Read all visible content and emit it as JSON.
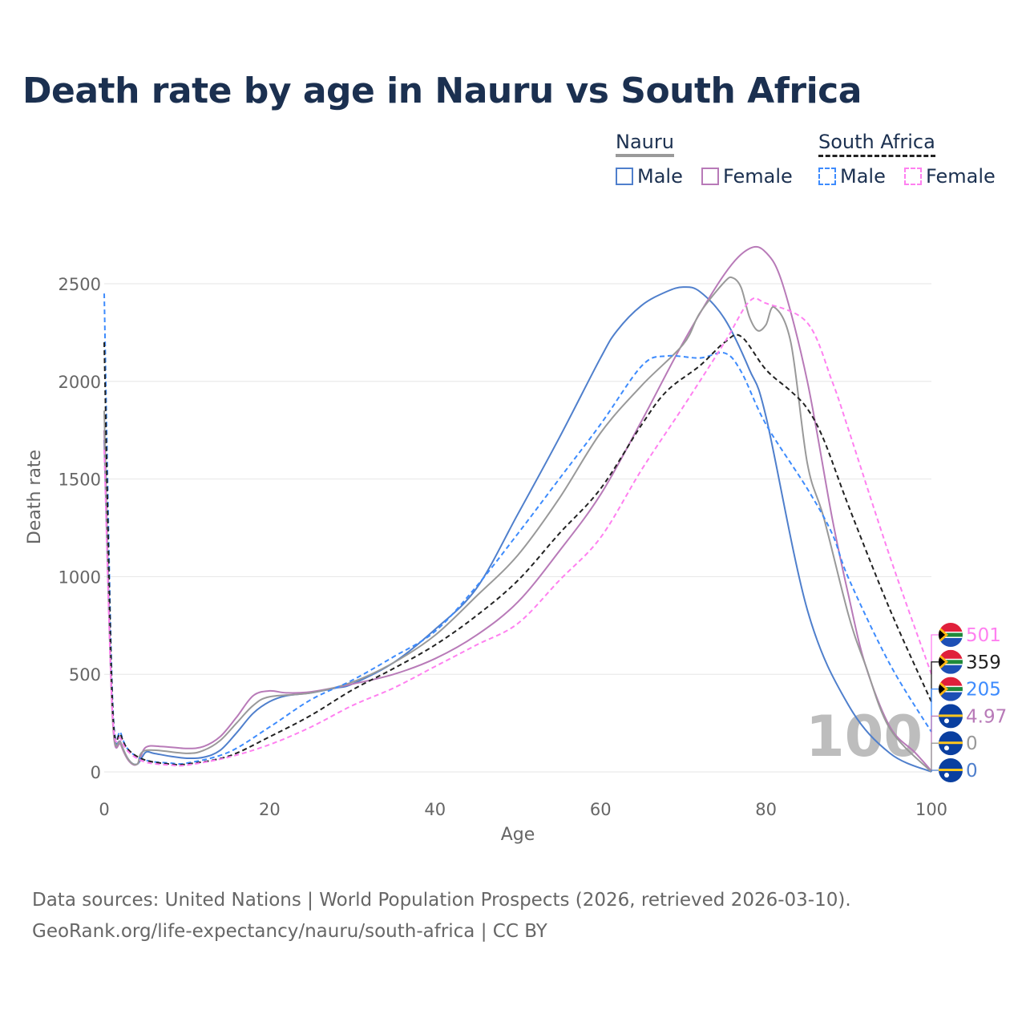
{
  "title": "Death rate by age in Nauru vs South Africa",
  "legend": {
    "groups": [
      {
        "name": "Nauru",
        "items": [
          "Male",
          "Female"
        ]
      },
      {
        "name": "South Africa",
        "items": [
          "Male",
          "Female"
        ]
      }
    ]
  },
  "footer": {
    "line1": "Data sources: United Nations | World Population Prospects (2026, retrieved 2026-03-10).",
    "line2": "GeoRank.org/life-expectancy/nauru/south-africa | CC BY"
  },
  "watermark": "100",
  "chart_data": {
    "type": "line",
    "title": "Death rate by age in Nauru vs South Africa",
    "xlabel": "Age",
    "ylabel": "Death rate",
    "xlim": [
      0,
      100
    ],
    "ylim": [
      0,
      2700
    ],
    "xticks": [
      0,
      20,
      40,
      60,
      80,
      100
    ],
    "yticks": [
      0,
      500,
      1000,
      1500,
      2000,
      2500
    ],
    "grid": true,
    "legend_position": "top-right",
    "series": [
      {
        "name": "Nauru Male",
        "country": "Nauru",
        "color": "#4f7fcc",
        "dash": false,
        "end_label": "0",
        "points": [
          [
            0,
            1700
          ],
          [
            1,
            300
          ],
          [
            2,
            150
          ],
          [
            3,
            60
          ],
          [
            4,
            40
          ],
          [
            5,
            100
          ],
          [
            6,
            95
          ],
          [
            8,
            80
          ],
          [
            10,
            70
          ],
          [
            12,
            75
          ],
          [
            14,
            110
          ],
          [
            16,
            200
          ],
          [
            18,
            300
          ],
          [
            20,
            360
          ],
          [
            22,
            390
          ],
          [
            25,
            405
          ],
          [
            28,
            430
          ],
          [
            30,
            450
          ],
          [
            35,
            560
          ],
          [
            40,
            730
          ],
          [
            45,
            940
          ],
          [
            50,
            1320
          ],
          [
            55,
            1710
          ],
          [
            60,
            2120
          ],
          [
            62,
            2260
          ],
          [
            65,
            2390
          ],
          [
            68,
            2460
          ],
          [
            70,
            2483
          ],
          [
            72,
            2460
          ],
          [
            75,
            2320
          ],
          [
            78,
            2060
          ],
          [
            80,
            1820
          ],
          [
            85,
            830
          ],
          [
            90,
            340
          ],
          [
            95,
            95
          ],
          [
            100,
            0
          ]
        ]
      },
      {
        "name": "Nauru Female",
        "country": "Nauru",
        "color": "#b87ab8",
        "dash": false,
        "end_label": "4.97",
        "points": [
          [
            0,
            1750
          ],
          [
            1,
            280
          ],
          [
            2,
            140
          ],
          [
            3,
            55
          ],
          [
            4,
            40
          ],
          [
            5,
            125
          ],
          [
            7,
            130
          ],
          [
            10,
            120
          ],
          [
            12,
            130
          ],
          [
            14,
            180
          ],
          [
            16,
            280
          ],
          [
            18,
            390
          ],
          [
            20,
            415
          ],
          [
            22,
            405
          ],
          [
            25,
            410
          ],
          [
            30,
            450
          ],
          [
            35,
            500
          ],
          [
            40,
            580
          ],
          [
            45,
            700
          ],
          [
            50,
            870
          ],
          [
            55,
            1130
          ],
          [
            60,
            1420
          ],
          [
            65,
            1800
          ],
          [
            70,
            2200
          ],
          [
            75,
            2550
          ],
          [
            78,
            2680
          ],
          [
            80,
            2660
          ],
          [
            82,
            2500
          ],
          [
            85,
            2000
          ],
          [
            88,
            1300
          ],
          [
            90,
            900
          ],
          [
            92,
            550
          ],
          [
            95,
            230
          ],
          [
            98,
            100
          ],
          [
            100,
            5
          ]
        ]
      },
      {
        "name": "Nauru",
        "country": "Nauru",
        "color": "#999999",
        "dash": false,
        "end_label": "0",
        "points": [
          [
            0,
            1850
          ],
          [
            1,
            300
          ],
          [
            2,
            150
          ],
          [
            3,
            60
          ],
          [
            4,
            40
          ],
          [
            5,
            110
          ],
          [
            10,
            95
          ],
          [
            12,
            110
          ],
          [
            14,
            160
          ],
          [
            16,
            250
          ],
          [
            18,
            340
          ],
          [
            20,
            385
          ],
          [
            25,
            405
          ],
          [
            30,
            460
          ],
          [
            35,
            560
          ],
          [
            40,
            700
          ],
          [
            45,
            900
          ],
          [
            50,
            1110
          ],
          [
            55,
            1400
          ],
          [
            60,
            1736
          ],
          [
            65,
            1980
          ],
          [
            70,
            2190
          ],
          [
            72,
            2350
          ],
          [
            75,
            2510
          ],
          [
            76,
            2530
          ],
          [
            77,
            2480
          ],
          [
            78,
            2330
          ],
          [
            79,
            2260
          ],
          [
            80,
            2290
          ],
          [
            81,
            2380
          ],
          [
            83,
            2200
          ],
          [
            85,
            1580
          ],
          [
            87,
            1300
          ],
          [
            90,
            800
          ],
          [
            92,
            550
          ],
          [
            95,
            220
          ],
          [
            100,
            0
          ]
        ]
      },
      {
        "name": "South Africa Male",
        "country": "South Africa",
        "color": "#3d8bfd",
        "dash": true,
        "end_label": "205",
        "points": [
          [
            0,
            2450
          ],
          [
            1,
            380
          ],
          [
            2,
            200
          ],
          [
            3,
            110
          ],
          [
            5,
            60
          ],
          [
            8,
            45
          ],
          [
            10,
            45
          ],
          [
            15,
            100
          ],
          [
            20,
            230
          ],
          [
            25,
            370
          ],
          [
            30,
            470
          ],
          [
            35,
            590
          ],
          [
            40,
            720
          ],
          [
            45,
            950
          ],
          [
            50,
            1220
          ],
          [
            55,
            1500
          ],
          [
            60,
            1780
          ],
          [
            65,
            2080
          ],
          [
            68,
            2130
          ],
          [
            72,
            2120
          ],
          [
            75,
            2145
          ],
          [
            77,
            2050
          ],
          [
            80,
            1780
          ],
          [
            85,
            1450
          ],
          [
            88,
            1220
          ],
          [
            90,
            990
          ],
          [
            95,
            550
          ],
          [
            100,
            205
          ]
        ]
      },
      {
        "name": "South Africa",
        "country": "South Africa",
        "color": "#222222",
        "dash": true,
        "end_label": "359",
        "points": [
          [
            0,
            2200
          ],
          [
            1,
            350
          ],
          [
            2,
            190
          ],
          [
            3,
            110
          ],
          [
            5,
            60
          ],
          [
            8,
            40
          ],
          [
            10,
            40
          ],
          [
            15,
            80
          ],
          [
            20,
            180
          ],
          [
            25,
            290
          ],
          [
            30,
            420
          ],
          [
            35,
            530
          ],
          [
            40,
            650
          ],
          [
            45,
            800
          ],
          [
            50,
            980
          ],
          [
            55,
            1220
          ],
          [
            60,
            1450
          ],
          [
            65,
            1780
          ],
          [
            68,
            1950
          ],
          [
            72,
            2080
          ],
          [
            75,
            2200
          ],
          [
            77,
            2230
          ],
          [
            80,
            2060
          ],
          [
            83,
            1950
          ],
          [
            85,
            1860
          ],
          [
            87,
            1700
          ],
          [
            90,
            1360
          ],
          [
            95,
            830
          ],
          [
            100,
            359
          ]
        ]
      },
      {
        "name": "South Africa Female",
        "country": "South Africa",
        "color": "#ff80f0",
        "dash": true,
        "end_label": "501",
        "points": [
          [
            0,
            1650
          ],
          [
            1,
            300
          ],
          [
            2,
            170
          ],
          [
            3,
            100
          ],
          [
            5,
            50
          ],
          [
            8,
            35
          ],
          [
            10,
            35
          ],
          [
            15,
            75
          ],
          [
            20,
            140
          ],
          [
            25,
            230
          ],
          [
            30,
            340
          ],
          [
            35,
            430
          ],
          [
            40,
            540
          ],
          [
            45,
            650
          ],
          [
            50,
            760
          ],
          [
            55,
            980
          ],
          [
            60,
            1200
          ],
          [
            65,
            1550
          ],
          [
            70,
            1870
          ],
          [
            75,
            2200
          ],
          [
            78,
            2410
          ],
          [
            80,
            2400
          ],
          [
            85,
            2300
          ],
          [
            88,
            2000
          ],
          [
            90,
            1750
          ],
          [
            95,
            1100
          ],
          [
            100,
            501
          ]
        ]
      }
    ]
  }
}
